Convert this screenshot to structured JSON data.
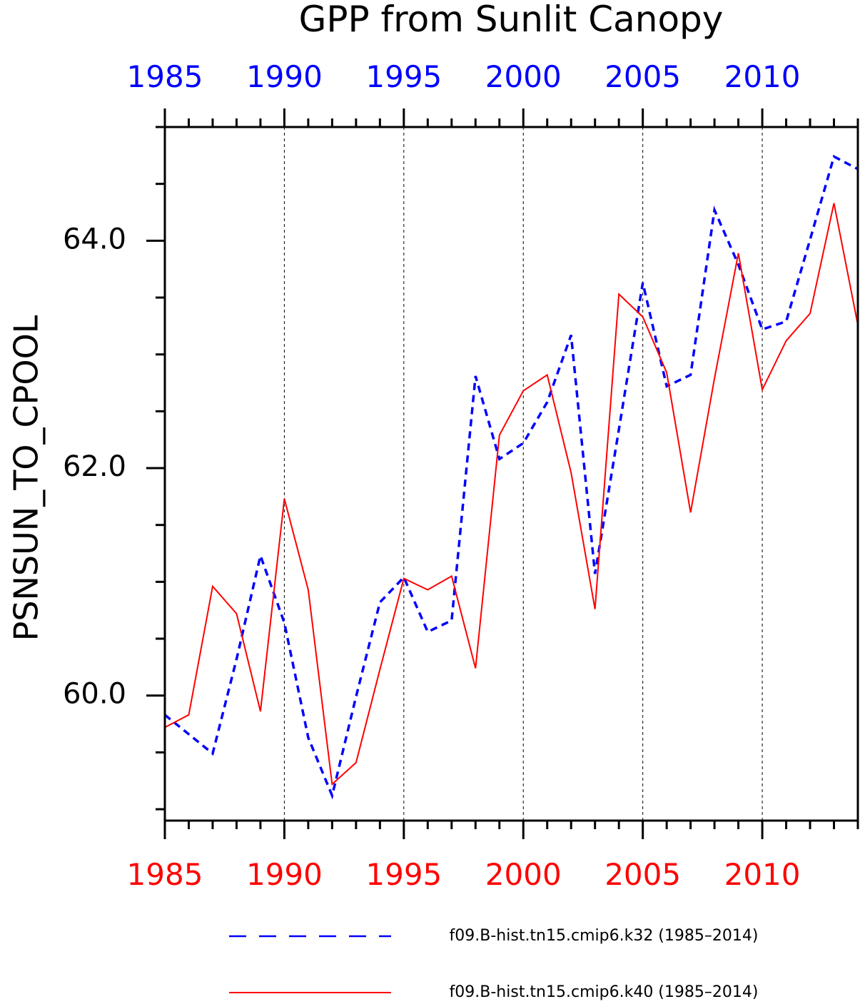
{
  "chart_data": {
    "type": "line",
    "title": "GPP from Sunlit Canopy",
    "ylabel": "PSNSUN_TO_CPOOL",
    "xlabel": "",
    "xlim": [
      1985,
      2014
    ],
    "ylim": [
      58.9,
      65.0
    ],
    "x_ticks": [
      1985,
      1990,
      1995,
      2000,
      2005,
      2010
    ],
    "y_ticks": [
      60.0,
      62.0,
      64.0
    ],
    "y_tick_labels": [
      "60.0",
      "62.0",
      "64.0"
    ],
    "grid": "vertical dashed lines at labeled x ticks",
    "top_axis_color": "#0000ff",
    "bottom_axis_color": "#ff0000",
    "x": [
      1985,
      1986,
      1987,
      1988,
      1989,
      1990,
      1991,
      1992,
      1993,
      1994,
      1995,
      1996,
      1997,
      1998,
      1999,
      2000,
      2001,
      2002,
      2003,
      2004,
      2005,
      2006,
      2007,
      2008,
      2009,
      2010,
      2011,
      2012,
      2013,
      2014
    ],
    "series": [
      {
        "name": "f09.B-hist.tn15.cmip6.k32 (1985–2014)",
        "color": "#0000ff",
        "style": "dashed",
        "values": [
          59.83,
          59.66,
          59.49,
          60.32,
          61.23,
          60.64,
          59.63,
          59.12,
          59.99,
          60.82,
          61.04,
          60.56,
          60.66,
          62.81,
          62.08,
          62.22,
          62.58,
          63.17,
          61.07,
          62.34,
          63.63,
          62.72,
          62.82,
          64.27,
          63.79,
          63.22,
          63.29,
          64.01,
          64.74,
          64.63
        ]
      },
      {
        "name": "f09.B-hist.tn15.cmip6.k40 (1985–2014)",
        "color": "#ff0000",
        "style": "solid",
        "values": [
          59.72,
          59.83,
          60.96,
          60.72,
          59.86,
          61.73,
          60.93,
          59.22,
          59.41,
          60.23,
          61.03,
          60.93,
          61.05,
          60.24,
          62.29,
          62.68,
          62.82,
          61.96,
          60.76,
          63.53,
          63.33,
          62.84,
          61.61,
          62.79,
          63.89,
          62.69,
          63.12,
          63.36,
          64.33,
          63.26
        ]
      }
    ],
    "legend": "bottom"
  }
}
